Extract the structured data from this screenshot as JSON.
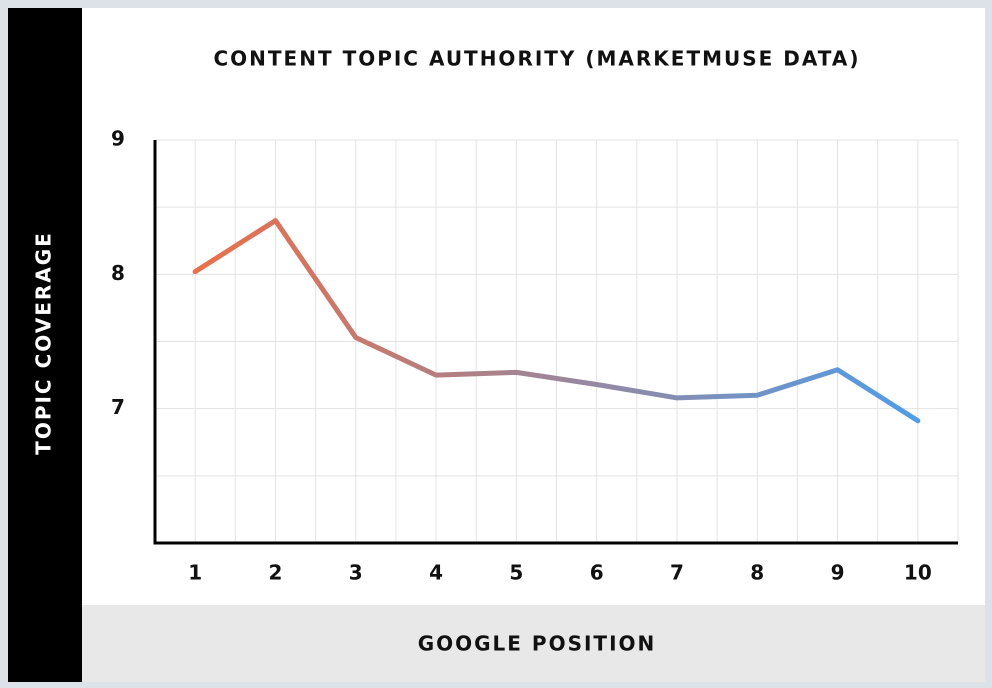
{
  "chart_data": {
    "type": "line",
    "title": "CONTENT TOPIC AUTHORITY (MARKETMUSE DATA)",
    "x_label": "GOOGLE POSITION",
    "y_label": "TOPIC COVERAGE",
    "x": [
      1,
      2,
      3,
      4,
      5,
      6,
      7,
      8,
      9,
      10
    ],
    "values": [
      8.02,
      8.4,
      7.53,
      7.25,
      7.27,
      7.18,
      7.08,
      7.1,
      7.29,
      6.91
    ],
    "colors": [
      "#ea6f4a",
      "#4f9de9"
    ],
    "xlim": [
      0.5,
      10.5
    ],
    "xticks": [
      1,
      2,
      3,
      4,
      5,
      6,
      7,
      8,
      9,
      10
    ],
    "ylim": [
      6,
      9
    ],
    "yticks": [
      7,
      8,
      9
    ],
    "minor_yticks": [
      6.5,
      7.5,
      8.5
    ],
    "grid": true
  }
}
